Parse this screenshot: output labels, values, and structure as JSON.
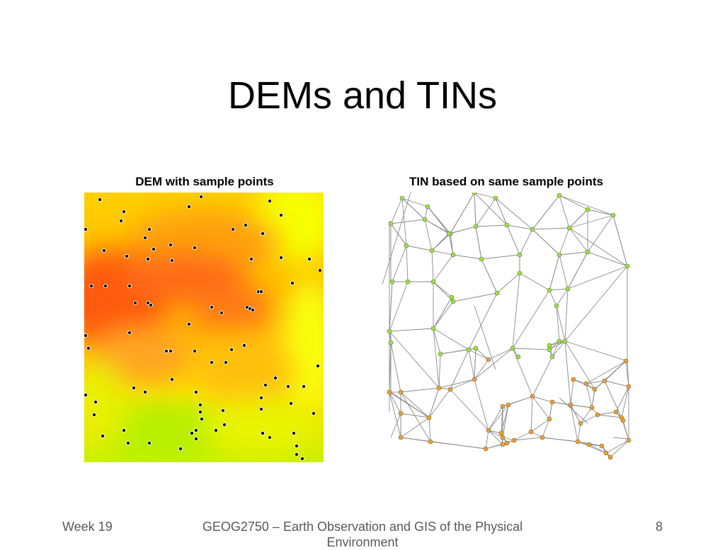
{
  "slide": {
    "title": "DEMs and TINs",
    "dem_caption": "DEM with sample points",
    "tin_caption": "TIN based on same sample points"
  },
  "footer": {
    "week": "Week 19",
    "course": "GEOG2750 – Earth Observation and GIS of the Physical Environment",
    "page": "8"
  },
  "colors": {
    "high": "#ff5a10",
    "mid": "#ffcc00",
    "low": "#c8f000",
    "tin_green": "#9be632",
    "tin_orange": "#f5a020",
    "tin_edge": "#8a8a8a"
  }
}
